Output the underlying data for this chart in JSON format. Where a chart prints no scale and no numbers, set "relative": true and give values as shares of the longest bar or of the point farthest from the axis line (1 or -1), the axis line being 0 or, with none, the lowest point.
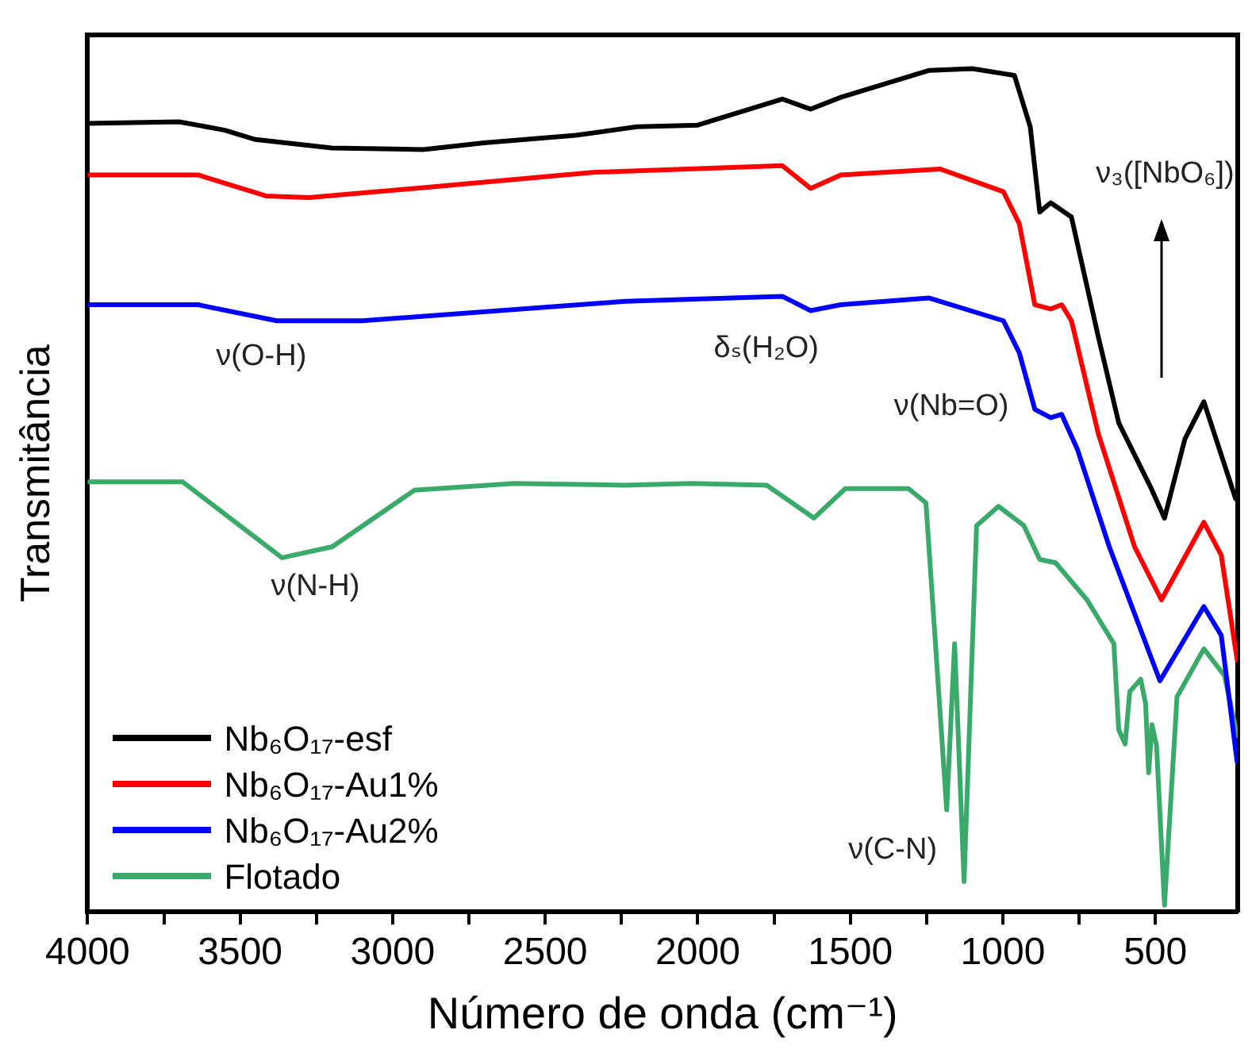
{
  "chart_data": {
    "type": "line",
    "relative": true,
    "xlabel": "Número de onda (cm⁻¹)",
    "ylabel": "Transmitância",
    "xlim": [
      4000,
      230
    ],
    "xticks": [
      4000,
      {
        "value": 3750,
        "label": null
      },
      3500,
      {
        "value": 3250,
        "label": null
      },
      3000,
      {
        "value": 2750,
        "label": null
      },
      2500,
      {
        "value": 2250,
        "label": null
      },
      2000,
      {
        "value": 1750,
        "label": null
      },
      1500,
      {
        "value": 1250,
        "label": null
      },
      1000,
      {
        "value": 750,
        "label": null
      },
      500
    ],
    "grid": false,
    "legend": "bottom left",
    "marker": "none",
    "line_style": "solid",
    "series": [
      {
        "name": "Nb₆O₁₇-esf",
        "color": "#000000",
        "x": [
          4000,
          3700,
          3550,
          3450,
          3200,
          2900,
          2700,
          2400,
          2200,
          2000,
          1723,
          1630,
          1531,
          1241,
          1100,
          962,
          910,
          879,
          843,
          775,
          687,
          620,
          516,
          470,
          403,
          341,
          237
        ],
        "values": [
          0.935,
          0.937,
          0.927,
          0.916,
          0.906,
          0.904,
          0.912,
          0.921,
          0.931,
          0.933,
          0.964,
          0.952,
          0.966,
          0.998,
          1.0,
          0.992,
          0.931,
          0.83,
          0.841,
          0.824,
          0.682,
          0.58,
          0.504,
          0.467,
          0.561,
          0.605,
          0.49
        ]
      },
      {
        "name": "Nb₆O₁₇-Au1%",
        "color": "#ff0000",
        "x": [
          4000,
          3638,
          3415,
          3275,
          2929,
          2344,
          1723,
          1630,
          1531,
          1205,
          998,
          946,
          895,
          843,
          807,
          775,
          687,
          568,
          480,
          341,
          284,
          232
        ],
        "values": [
          0.874,
          0.874,
          0.849,
          0.847,
          0.858,
          0.877,
          0.885,
          0.858,
          0.874,
          0.881,
          0.854,
          0.816,
          0.72,
          0.715,
          0.72,
          0.701,
          0.567,
          0.433,
          0.37,
          0.462,
          0.423,
          0.299
        ]
      },
      {
        "name": "Nb₆O₁₇-Au2%",
        "color": "#0000ff",
        "x": [
          4000,
          3638,
          3380,
          3100,
          2240,
          1723,
          1630,
          1531,
          1241,
          998,
          946,
          895,
          843,
          807,
          755,
          651,
          485,
          341,
          284,
          232
        ],
        "values": [
          0.72,
          0.72,
          0.701,
          0.701,
          0.724,
          0.73,
          0.713,
          0.72,
          0.728,
          0.701,
          0.663,
          0.596,
          0.586,
          0.59,
          0.548,
          0.433,
          0.274,
          0.362,
          0.328,
          0.178
        ]
      },
      {
        "name": "Flotado",
        "color": "#3aaa6a",
        "x": [
          4000,
          3689,
          3363,
          3198,
          2929,
          2602,
          2240,
          2018,
          1774,
          1619,
          1516,
          1309,
          1252,
          1184,
          1158,
          1127,
          1086,
          1014,
          931,
          879,
          827,
          724,
          636,
          620,
          599,
          584,
          548,
          532,
          522,
          511,
          496,
          470,
          429,
          341,
          273,
          232
        ],
        "values": [
          0.51,
          0.51,
          0.42,
          0.433,
          0.5,
          0.508,
          0.506,
          0.508,
          0.506,
          0.467,
          0.502,
          0.502,
          0.485,
          0.121,
          0.318,
          0.036,
          0.458,
          0.481,
          0.458,
          0.418,
          0.414,
          0.37,
          0.318,
          0.216,
          0.199,
          0.261,
          0.276,
          0.247,
          0.165,
          0.222,
          0.197,
          0.008,
          0.255,
          0.312,
          0.28,
          0.209
        ]
      }
    ],
    "annotations": [
      "ν(O-H)",
      "δₛ(H₂O)",
      "ν(Nb=O)",
      "ν(N-H)",
      "ν(C-N)",
      "ν₃([NbO₆])"
    ]
  }
}
